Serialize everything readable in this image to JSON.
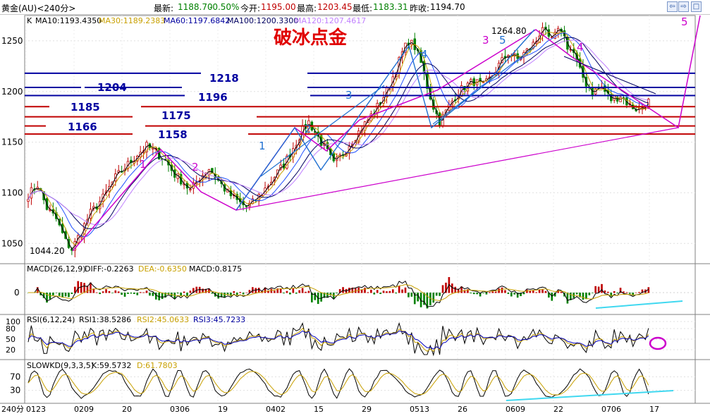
{
  "header": {
    "symbol": "黄金(AU)<240分>",
    "latest_label": "最新:",
    "latest": "1188.70",
    "change": "-0.50%",
    "open_label": "今开:",
    "open": "1195.00",
    "high_label": "最高:",
    "high": "1203.45",
    "low_label": "最低:",
    "low": "1183.31",
    "prev_label": "昨收:",
    "prev": "1194.70"
  },
  "indicators": {
    "ma_k": "K",
    "ma10": "MA10:1193.4350",
    "ma30": "MA30:1189.2383",
    "ma60": "MA60:1197.6842",
    "ma100": "MA100:1200.3300",
    "ma120": "MA120:1207.4617",
    "macd_name": "MACD(26,12,9)",
    "macd_diff": "DIFF:-0.2263",
    "macd_dea": "DEA:-0.6350",
    "macd_macd": "MACD:0.8175",
    "rsi_name": "RSI(6,12,24)",
    "rsi1": "RSI1:38.5286",
    "rsi2": "RSI2:45.0633",
    "rsi3": "RSI3:45.7233",
    "kd_name": "SLOWKD(9,3,3,5)",
    "kd_k": "K:59.5732",
    "kd_d": "D:61.7803"
  },
  "annotations": {
    "title": "破冰点金",
    "high_label": "1264.80",
    "low_label": "1044.20",
    "levels": [
      "1218",
      "1204",
      "1196",
      "1185",
      "1175",
      "1166",
      "1158"
    ],
    "wave_labels_blue": [
      "1",
      "2",
      "3",
      "4",
      "5"
    ],
    "wave_labels_magenta": [
      "1",
      "2",
      "3",
      "4",
      "5"
    ]
  },
  "colors": {
    "up": "#c00000",
    "down": "#008000",
    "blue": "#0000a0",
    "red": "#c00000",
    "magenta": "#cc00cc",
    "wave_blue": "#1e6fd0",
    "ma10": "#000000",
    "ma30": "#c8a000",
    "ma60": "#2050ff",
    "ma100": "#000060",
    "ma120": "#c080ff",
    "cyan": "#40d8f0"
  },
  "chart_data": {
    "type": "candlestick",
    "panel_main": {
      "yticks": [
        1050,
        1100,
        1150,
        1200,
        1250
      ],
      "ylim": [
        1030,
        1275
      ]
    },
    "panel_macd": {
      "yticks": [
        0
      ]
    },
    "panel_rsi": {
      "yticks": [
        100,
        80,
        50,
        20
      ]
    },
    "panel_kd": {
      "yticks": [
        70,
        30
      ]
    },
    "period_label": "240分",
    "xticks": [
      "0123",
      "0209",
      "20",
      "0306",
      "19",
      "0402",
      "15",
      "29",
      "0513",
      "26",
      "0609",
      "22",
      "0706",
      "17"
    ],
    "price_path": [
      [
        0,
        1098
      ],
      [
        3,
        1108
      ],
      [
        6,
        1085
      ],
      [
        9,
        1074
      ],
      [
        12,
        1052
      ],
      [
        14,
        1044.2
      ],
      [
        17,
        1062
      ],
      [
        20,
        1080
      ],
      [
        24,
        1095
      ],
      [
        28,
        1115
      ],
      [
        32,
        1128
      ],
      [
        35,
        1138
      ],
      [
        38,
        1146
      ],
      [
        41,
        1140
      ],
      [
        44,
        1132
      ],
      [
        47,
        1118
      ],
      [
        50,
        1110
      ],
      [
        52,
        1102
      ],
      [
        55,
        1115
      ],
      [
        58,
        1124
      ],
      [
        61,
        1112
      ],
      [
        64,
        1100
      ],
      [
        67,
        1092
      ],
      [
        70,
        1086
      ],
      [
        72,
        1090
      ],
      [
        75,
        1100
      ],
      [
        78,
        1112
      ],
      [
        82,
        1128
      ],
      [
        86,
        1150
      ],
      [
        88,
        1162
      ],
      [
        90,
        1170
      ],
      [
        92,
        1160
      ],
      [
        94,
        1150
      ],
      [
        96,
        1140
      ],
      [
        98,
        1128
      ],
      [
        100,
        1135
      ],
      [
        103,
        1148
      ],
      [
        106,
        1160
      ],
      [
        109,
        1172
      ],
      [
        112,
        1185
      ],
      [
        115,
        1200
      ],
      [
        118,
        1222
      ],
      [
        120,
        1238
      ],
      [
        122,
        1250
      ],
      [
        124,
        1244
      ],
      [
        126,
        1228
      ],
      [
        128,
        1205
      ],
      [
        130,
        1185
      ],
      [
        132,
        1170
      ],
      [
        134,
        1180
      ],
      [
        137,
        1196
      ],
      [
        140,
        1205
      ],
      [
        143,
        1210
      ],
      [
        146,
        1205
      ],
      [
        148,
        1212
      ],
      [
        151,
        1226
      ],
      [
        154,
        1238
      ],
      [
        157,
        1232
      ],
      [
        160,
        1240
      ],
      [
        163,
        1250
      ],
      [
        165,
        1264.8
      ],
      [
        167,
        1250
      ],
      [
        169,
        1255
      ],
      [
        171,
        1262
      ],
      [
        173,
        1245
      ],
      [
        175,
        1238
      ],
      [
        177,
        1220
      ],
      [
        179,
        1208
      ],
      [
        181,
        1200
      ],
      [
        184,
        1204
      ],
      [
        187,
        1192
      ],
      [
        190,
        1196
      ],
      [
        193,
        1186
      ],
      [
        196,
        1182
      ],
      [
        199,
        1190
      ]
    ],
    "levels": [
      {
        "value": 1218,
        "color": "blue"
      },
      {
        "value": 1204,
        "color": "blue"
      },
      {
        "value": 1196,
        "color": "blue"
      },
      {
        "value": 1185,
        "color": "red"
      },
      {
        "value": 1175,
        "color": "red"
      },
      {
        "value": 1166,
        "color": "red"
      },
      {
        "value": 1158,
        "color": "red"
      }
    ]
  }
}
